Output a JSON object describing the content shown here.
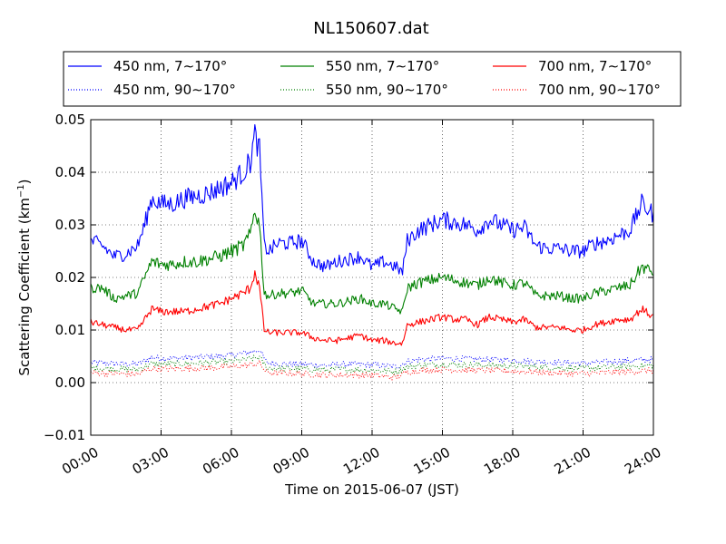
{
  "chart_data": {
    "type": "line",
    "title": "NL150607.dat",
    "xlabel": "Time on 2015-06-07 (JST)",
    "ylabel": "Scattering Coefficient (km",
    "ylabel_sup": "−1",
    "ylabel_close": ")",
    "xlim_hours": [
      0,
      24
    ],
    "ylim": [
      -0.01,
      0.05
    ],
    "x_ticks": [
      "00:00",
      "03:00",
      "06:00",
      "09:00",
      "12:00",
      "15:00",
      "18:00",
      "21:00",
      "24:00"
    ],
    "y_ticks": [
      "0.05",
      "0.04",
      "0.03",
      "0.02",
      "0.01",
      "0.00",
      "−0.01"
    ],
    "grid": true,
    "legend_position": "top",
    "colors": {
      "450": "#0000ff",
      "550": "#008000",
      "700": "#ff0000"
    },
    "series": [
      {
        "name": "450 nm, 7∼170°",
        "color": "#0000ff",
        "style": "solid",
        "x": [
          0,
          0.5,
          1,
          1.5,
          2,
          2.3,
          2.6,
          3,
          3.5,
          4,
          4.5,
          5,
          5.5,
          6,
          6.5,
          6.8,
          7.0,
          7.2,
          7.4,
          7.6,
          8,
          8.5,
          9,
          9.5,
          10,
          10.5,
          11,
          11.5,
          12,
          12.5,
          13,
          13.3,
          13.5,
          14,
          14.5,
          15,
          15.5,
          16,
          16.5,
          17,
          17.5,
          18,
          18.5,
          19,
          19.5,
          20,
          20.5,
          21,
          21.5,
          22,
          22.5,
          23,
          23.5,
          24
        ],
        "y": [
          0.027,
          0.026,
          0.024,
          0.0245,
          0.026,
          0.03,
          0.035,
          0.034,
          0.034,
          0.035,
          0.0355,
          0.036,
          0.037,
          0.038,
          0.04,
          0.042,
          0.047,
          0.044,
          0.026,
          0.025,
          0.0265,
          0.0265,
          0.027,
          0.023,
          0.022,
          0.023,
          0.0235,
          0.024,
          0.022,
          0.023,
          0.022,
          0.021,
          0.027,
          0.029,
          0.03,
          0.031,
          0.0305,
          0.03,
          0.029,
          0.031,
          0.03,
          0.029,
          0.0295,
          0.026,
          0.0255,
          0.0255,
          0.025,
          0.025,
          0.0265,
          0.027,
          0.028,
          0.029,
          0.034,
          0.032
        ]
      },
      {
        "name": "550 nm, 7∼170°",
        "color": "#008000",
        "style": "solid",
        "x": [
          0,
          0.5,
          1,
          1.5,
          2,
          2.3,
          2.6,
          3,
          3.5,
          4,
          4.5,
          5,
          5.5,
          6,
          6.5,
          6.8,
          7.0,
          7.2,
          7.4,
          7.6,
          8,
          8.5,
          9,
          9.5,
          10,
          10.5,
          11,
          11.5,
          12,
          12.5,
          13,
          13.3,
          13.5,
          14,
          14.5,
          15,
          15.5,
          16,
          16.5,
          17,
          17.5,
          18,
          18.5,
          19,
          19.5,
          20,
          20.5,
          21,
          21.5,
          22,
          22.5,
          23,
          23.5,
          24
        ],
        "y": [
          0.018,
          0.018,
          0.016,
          0.0165,
          0.017,
          0.02,
          0.023,
          0.0225,
          0.0225,
          0.023,
          0.023,
          0.0235,
          0.024,
          0.025,
          0.026,
          0.028,
          0.033,
          0.03,
          0.017,
          0.0165,
          0.017,
          0.017,
          0.0175,
          0.015,
          0.015,
          0.015,
          0.0155,
          0.016,
          0.015,
          0.015,
          0.014,
          0.0135,
          0.018,
          0.019,
          0.0195,
          0.02,
          0.0195,
          0.019,
          0.0185,
          0.02,
          0.019,
          0.0185,
          0.019,
          0.0165,
          0.0165,
          0.0165,
          0.016,
          0.016,
          0.017,
          0.0175,
          0.018,
          0.0185,
          0.022,
          0.021
        ]
      },
      {
        "name": "700 nm, 7∼170°",
        "color": "#ff0000",
        "style": "solid",
        "x": [
          0,
          0.5,
          1,
          1.5,
          2,
          2.3,
          2.6,
          3,
          3.5,
          4,
          4.5,
          5,
          5.5,
          6,
          6.5,
          6.8,
          7.0,
          7.2,
          7.4,
          7.6,
          8,
          8.5,
          9,
          9.5,
          10,
          10.5,
          11,
          11.5,
          12,
          12.5,
          13,
          13.3,
          13.5,
          14,
          14.5,
          15,
          15.5,
          16,
          16.5,
          17,
          17.5,
          18,
          18.5,
          19,
          19.5,
          20,
          20.5,
          21,
          21.5,
          22,
          22.5,
          23,
          23.5,
          24
        ],
        "y": [
          0.0115,
          0.011,
          0.0105,
          0.01,
          0.01,
          0.012,
          0.014,
          0.0135,
          0.0135,
          0.0135,
          0.014,
          0.0145,
          0.015,
          0.016,
          0.017,
          0.018,
          0.021,
          0.018,
          0.01,
          0.0095,
          0.0095,
          0.0095,
          0.0095,
          0.0085,
          0.008,
          0.008,
          0.0085,
          0.009,
          0.008,
          0.008,
          0.0075,
          0.0075,
          0.011,
          0.0115,
          0.012,
          0.0125,
          0.012,
          0.012,
          0.011,
          0.0125,
          0.012,
          0.0115,
          0.012,
          0.0105,
          0.0105,
          0.0105,
          0.01,
          0.01,
          0.011,
          0.0115,
          0.012,
          0.012,
          0.014,
          0.0125
        ]
      },
      {
        "name": "450 nm, 90∼170°",
        "color": "#0000ff",
        "style": "dotted",
        "x": [
          0,
          1,
          2,
          2.6,
          3,
          4,
          5,
          6,
          6.8,
          7.2,
          7.5,
          8,
          9,
          10,
          11,
          12,
          13,
          13.5,
          14,
          15,
          16,
          17,
          18,
          19,
          20,
          21,
          22,
          23,
          24
        ],
        "y": [
          0.0038,
          0.0036,
          0.0035,
          0.0048,
          0.0046,
          0.0047,
          0.0049,
          0.0052,
          0.0058,
          0.0062,
          0.0038,
          0.0036,
          0.0035,
          0.0033,
          0.0035,
          0.0034,
          0.003,
          0.004,
          0.0044,
          0.0046,
          0.0045,
          0.0044,
          0.0043,
          0.004,
          0.0038,
          0.0037,
          0.0039,
          0.0042,
          0.0044
        ]
      },
      {
        "name": "550 nm, 90∼170°",
        "color": "#008000",
        "style": "dotted",
        "x": [
          0,
          1,
          2,
          2.6,
          3,
          4,
          5,
          6,
          6.8,
          7.2,
          7.5,
          8,
          9,
          10,
          11,
          12,
          13,
          13.5,
          14,
          15,
          16,
          17,
          18,
          19,
          20,
          21,
          22,
          23,
          24
        ],
        "y": [
          0.0028,
          0.0026,
          0.0025,
          0.0036,
          0.0035,
          0.0036,
          0.0038,
          0.004,
          0.0045,
          0.0048,
          0.0028,
          0.0027,
          0.0026,
          0.0024,
          0.0025,
          0.0024,
          0.0021,
          0.003,
          0.0033,
          0.0035,
          0.0034,
          0.0033,
          0.0032,
          0.003,
          0.0028,
          0.0027,
          0.0029,
          0.0031,
          0.0033
        ]
      },
      {
        "name": "700 nm, 90∼170°",
        "color": "#ff0000",
        "style": "dotted",
        "x": [
          0,
          1,
          2,
          2.6,
          3,
          4,
          5,
          6,
          6.8,
          7.2,
          7.5,
          8,
          9,
          10,
          11,
          12,
          13,
          13.5,
          14,
          15,
          16,
          17,
          18,
          19,
          20,
          21,
          22,
          23,
          24
        ],
        "y": [
          0.0019,
          0.0017,
          0.0016,
          0.0027,
          0.0026,
          0.0027,
          0.0028,
          0.003,
          0.0034,
          0.0037,
          0.0019,
          0.0018,
          0.0017,
          0.0014,
          0.0015,
          0.0014,
          0.001,
          0.002,
          0.0023,
          0.0025,
          0.0024,
          0.0023,
          0.0022,
          0.002,
          0.0018,
          0.0017,
          0.0019,
          0.0021,
          0.0023
        ]
      }
    ]
  }
}
